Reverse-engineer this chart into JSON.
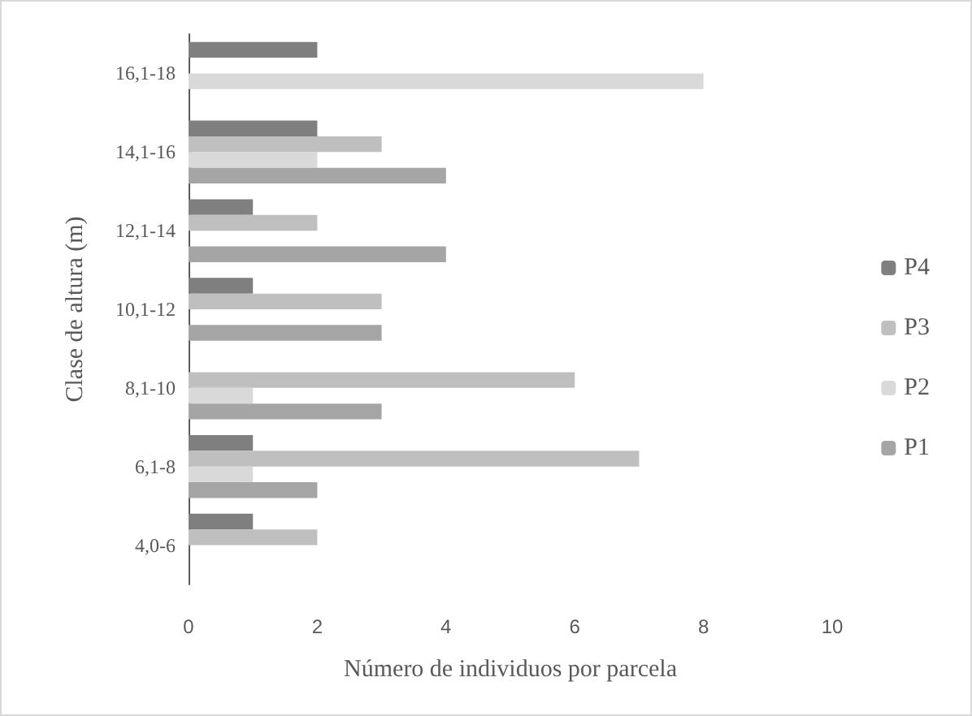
{
  "chart_data": {
    "type": "bar",
    "orientation": "horizontal",
    "xlabel": "Número de individuos por parcela",
    "ylabel": "Clase de altura (m)",
    "categories": [
      "16,1-18",
      "14,1-16",
      "12,1-14",
      "10,1-12",
      "8,1-10",
      "6,1-8",
      "4,0-6"
    ],
    "series": [
      {
        "name": "P1",
        "color": "#a5a5a5",
        "values": [
          0,
          4,
          4,
          3,
          3,
          2,
          0
        ]
      },
      {
        "name": "P2",
        "color": "#d9d9d9",
        "values": [
          8,
          2,
          0,
          0,
          1,
          1,
          0
        ]
      },
      {
        "name": "P3",
        "color": "#bfbfbf",
        "values": [
          0,
          3,
          2,
          3,
          6,
          7,
          2
        ]
      },
      {
        "name": "P4",
        "color": "#7f7f7f",
        "values": [
          2,
          2,
          1,
          1,
          0,
          1,
          1
        ]
      }
    ],
    "xlim": [
      0,
      10
    ],
    "xticks": [
      0,
      2,
      4,
      6,
      8,
      10
    ],
    "grid": false,
    "legend": "right"
  }
}
